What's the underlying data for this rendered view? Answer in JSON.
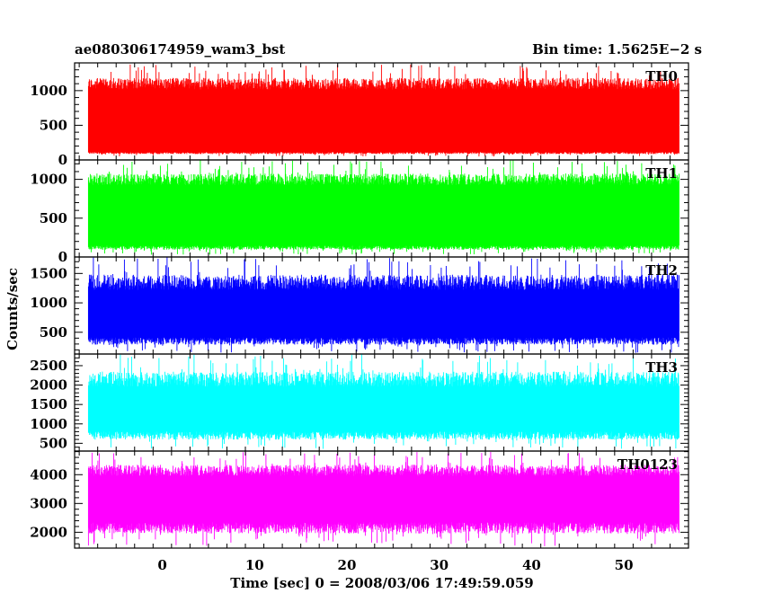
{
  "header": {
    "title": "ae080306174959_wam3_bst",
    "bin_time": "Bin time: 1.5625E−2 s"
  },
  "chart_data": {
    "type": "line",
    "xlabel": "Time [sec] 0 = 2008/03/06 17:49:59.059",
    "ylabel": "Counts/sec",
    "xlim": [
      -9.5,
      57
    ],
    "x_ticks": [
      0,
      10,
      20,
      30,
      40,
      50
    ],
    "data_range": [
      -8,
      56
    ],
    "bin_time": 0.015625,
    "panels": [
      {
        "name": "TH0",
        "color": "#ff0000",
        "ylim": [
          0,
          1400
        ],
        "yticks": [
          0,
          500,
          1000
        ],
        "typical_low": 100,
        "typical_high": 1100,
        "min_value": 50,
        "max_value": 1380
      },
      {
        "name": "TH1",
        "color": "#00ff00",
        "ylim": [
          0,
          1250
        ],
        "yticks": [
          0,
          500,
          1000
        ],
        "typical_low": 120,
        "typical_high": 1000,
        "min_value": 30,
        "max_value": 1250
      },
      {
        "name": "TH2",
        "color": "#0000ff",
        "ylim": [
          130,
          1780
        ],
        "yticks": [
          500,
          1000,
          1500
        ],
        "typical_low": 350,
        "typical_high": 1350,
        "min_value": 150,
        "max_value": 1780
      },
      {
        "name": "TH3",
        "color": "#00ffff",
        "ylim": [
          300,
          2800
        ],
        "yticks": [
          500,
          1000,
          1500,
          2000,
          2500
        ],
        "typical_low": 700,
        "typical_high": 2150,
        "min_value": 350,
        "max_value": 2800
      },
      {
        "name": "TH0123",
        "color": "#ff00ff",
        "ylim": [
          1450,
          4820
        ],
        "yticks": [
          2000,
          3000,
          4000
        ],
        "typical_low": 2150,
        "typical_high": 4150,
        "min_value": 1500,
        "max_value": 4800
      }
    ]
  }
}
